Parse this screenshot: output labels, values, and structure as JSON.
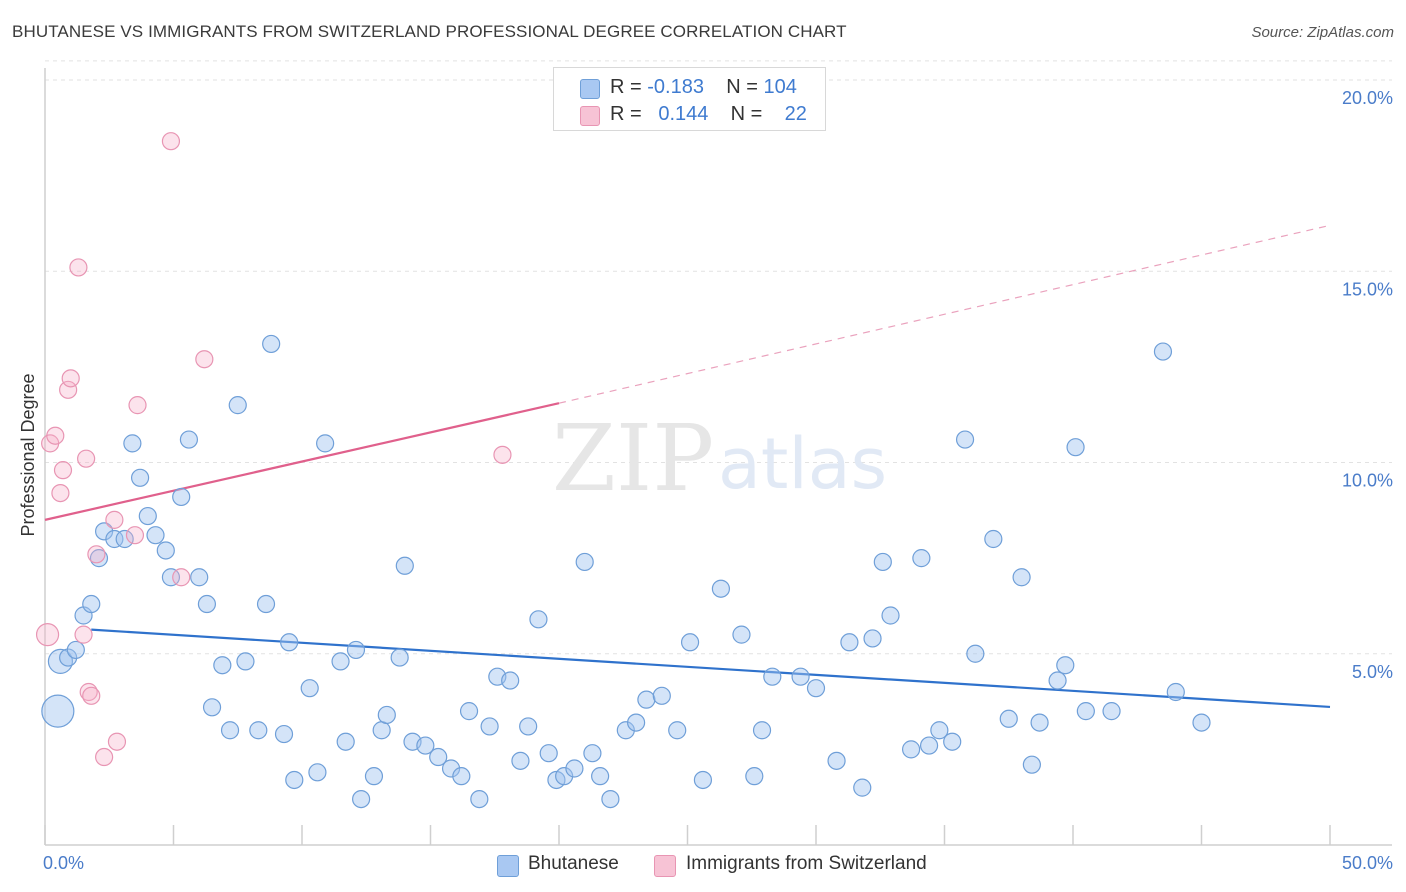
{
  "title": "BHUTANESE VS IMMIGRANTS FROM SWITZERLAND PROFESSIONAL DEGREE CORRELATION CHART",
  "source": "Source: ZipAtlas.com",
  "watermark": {
    "zip": "ZIP",
    "atlas": "atlas"
  },
  "legend": {
    "rows": [
      {
        "r_label": "R =",
        "r_value": "-0.183",
        "n_label": "N =",
        "n_value": "104",
        "color": "#a9c8f2",
        "border": "#6f9fd8"
      },
      {
        "r_label": "R =",
        "r_value": "0.144",
        "n_label": "N =",
        "n_value": "22",
        "color": "#f7c3d5",
        "border": "#e895b3"
      }
    ]
  },
  "chart_data": {
    "type": "scatter",
    "title": "BHUTANESE VS IMMIGRANTS FROM SWITZERLAND PROFESSIONAL DEGREE CORRELATION CHART",
    "xlabel": "",
    "ylabel": "Professional Degree",
    "xlim": [
      0,
      50
    ],
    "ylim": [
      0,
      20.5
    ],
    "x_tick_labels": [
      "0.0%",
      "50.0%"
    ],
    "y_ticks": [
      5,
      10,
      15,
      20
    ],
    "y_tick_labels": [
      "5.0%",
      "10.0%",
      "15.0%",
      "20.0%"
    ],
    "grid": true,
    "legend_position": "bottom",
    "series": [
      {
        "name": "Bhutanese",
        "color": "#6f9fd8",
        "trend": {
          "x0": 1.8,
          "y0": 5.63,
          "x1": 50,
          "y1": 3.61
        },
        "points": [
          [
            0.5,
            3.5
          ],
          [
            0.6,
            4.8
          ],
          [
            0.9,
            4.9
          ],
          [
            1.2,
            5.1
          ],
          [
            1.5,
            6.0
          ],
          [
            1.8,
            6.3
          ],
          [
            2.1,
            7.5
          ],
          [
            2.3,
            8.2
          ],
          [
            2.7,
            8.0
          ],
          [
            3.1,
            8.0
          ],
          [
            3.4,
            10.5
          ],
          [
            3.7,
            9.6
          ],
          [
            4.0,
            8.6
          ],
          [
            4.3,
            8.1
          ],
          [
            4.7,
            7.7
          ],
          [
            4.9,
            7.0
          ],
          [
            5.3,
            9.1
          ],
          [
            5.6,
            10.6
          ],
          [
            6.0,
            7.0
          ],
          [
            6.3,
            6.3
          ],
          [
            6.5,
            3.6
          ],
          [
            6.9,
            4.7
          ],
          [
            7.2,
            3.0
          ],
          [
            7.5,
            11.5
          ],
          [
            7.8,
            4.8
          ],
          [
            8.3,
            3.0
          ],
          [
            8.6,
            6.3
          ],
          [
            8.8,
            13.1
          ],
          [
            9.3,
            2.9
          ],
          [
            9.5,
            5.3
          ],
          [
            9.7,
            1.7
          ],
          [
            10.3,
            4.1
          ],
          [
            10.6,
            1.9
          ],
          [
            10.9,
            10.5
          ],
          [
            11.5,
            4.8
          ],
          [
            11.7,
            2.7
          ],
          [
            12.1,
            5.1
          ],
          [
            12.3,
            1.2
          ],
          [
            12.8,
            1.8
          ],
          [
            13.1,
            3.0
          ],
          [
            13.3,
            3.4
          ],
          [
            13.8,
            4.9
          ],
          [
            14.0,
            7.3
          ],
          [
            14.3,
            2.7
          ],
          [
            14.8,
            2.6
          ],
          [
            15.3,
            2.3
          ],
          [
            15.8,
            2.0
          ],
          [
            16.2,
            1.8
          ],
          [
            16.5,
            3.5
          ],
          [
            16.9,
            1.2
          ],
          [
            17.3,
            3.1
          ],
          [
            17.6,
            4.4
          ],
          [
            18.1,
            4.3
          ],
          [
            18.5,
            2.2
          ],
          [
            18.8,
            3.1
          ],
          [
            19.2,
            5.9
          ],
          [
            19.6,
            2.4
          ],
          [
            19.9,
            1.7
          ],
          [
            20.2,
            1.8
          ],
          [
            20.6,
            2.0
          ],
          [
            21.0,
            7.4
          ],
          [
            21.3,
            2.4
          ],
          [
            21.6,
            1.8
          ],
          [
            22.0,
            1.2
          ],
          [
            22.6,
            3.0
          ],
          [
            23.0,
            3.2
          ],
          [
            23.4,
            3.8
          ],
          [
            24.0,
            3.9
          ],
          [
            24.6,
            3.0
          ],
          [
            25.1,
            5.3
          ],
          [
            25.6,
            1.7
          ],
          [
            26.3,
            6.7
          ],
          [
            27.1,
            5.5
          ],
          [
            27.6,
            1.8
          ],
          [
            27.9,
            3.0
          ],
          [
            28.3,
            4.4
          ],
          [
            29.4,
            4.4
          ],
          [
            30.0,
            4.1
          ],
          [
            30.8,
            2.2
          ],
          [
            31.3,
            5.3
          ],
          [
            31.8,
            1.5
          ],
          [
            32.2,
            5.4
          ],
          [
            32.6,
            7.4
          ],
          [
            32.9,
            6.0
          ],
          [
            33.7,
            2.5
          ],
          [
            34.1,
            7.5
          ],
          [
            34.4,
            2.6
          ],
          [
            34.8,
            3.0
          ],
          [
            35.3,
            2.7
          ],
          [
            35.8,
            10.6
          ],
          [
            36.2,
            5.0
          ],
          [
            36.9,
            8.0
          ],
          [
            37.5,
            3.3
          ],
          [
            38.0,
            7.0
          ],
          [
            38.4,
            2.1
          ],
          [
            38.7,
            3.2
          ],
          [
            39.4,
            4.3
          ],
          [
            39.7,
            4.7
          ],
          [
            40.1,
            10.4
          ],
          [
            40.5,
            3.5
          ],
          [
            41.5,
            3.5
          ],
          [
            43.5,
            12.9
          ],
          [
            44.0,
            4.0
          ],
          [
            45.0,
            3.2
          ]
        ],
        "point_sizes_note": "two enlarged points at [0.5, 3.5] and [0.6, 4.8]"
      },
      {
        "name": "Immigrants from Switzerland",
        "color": "#e895b3",
        "trend": {
          "x0": 0,
          "y0": 8.5,
          "x1": 20,
          "y1": 11.55,
          "dashed_to_x": 50,
          "dashed_to_y": 16.2
        },
        "points": [
          [
            0.1,
            5.5
          ],
          [
            0.2,
            10.5
          ],
          [
            0.4,
            10.7
          ],
          [
            0.6,
            9.2
          ],
          [
            0.7,
            9.8
          ],
          [
            0.9,
            11.9
          ],
          [
            1.0,
            12.2
          ],
          [
            1.3,
            15.1
          ],
          [
            1.5,
            5.5
          ],
          [
            1.6,
            10.1
          ],
          [
            1.7,
            4.0
          ],
          [
            1.8,
            3.9
          ],
          [
            2.0,
            7.6
          ],
          [
            2.3,
            2.3
          ],
          [
            2.7,
            8.5
          ],
          [
            2.8,
            2.7
          ],
          [
            3.5,
            8.1
          ],
          [
            3.6,
            11.5
          ],
          [
            4.9,
            18.4
          ],
          [
            5.3,
            7.0
          ],
          [
            6.2,
            12.7
          ],
          [
            17.8,
            10.2
          ]
        ]
      }
    ]
  },
  "bottom_legend": [
    {
      "label": "Bhutanese",
      "color": "#a9c8f2",
      "border": "#6f9fd8"
    },
    {
      "label": "Immigrants from Switzerland",
      "color": "#f7c3d5",
      "border": "#e895b3"
    }
  ]
}
